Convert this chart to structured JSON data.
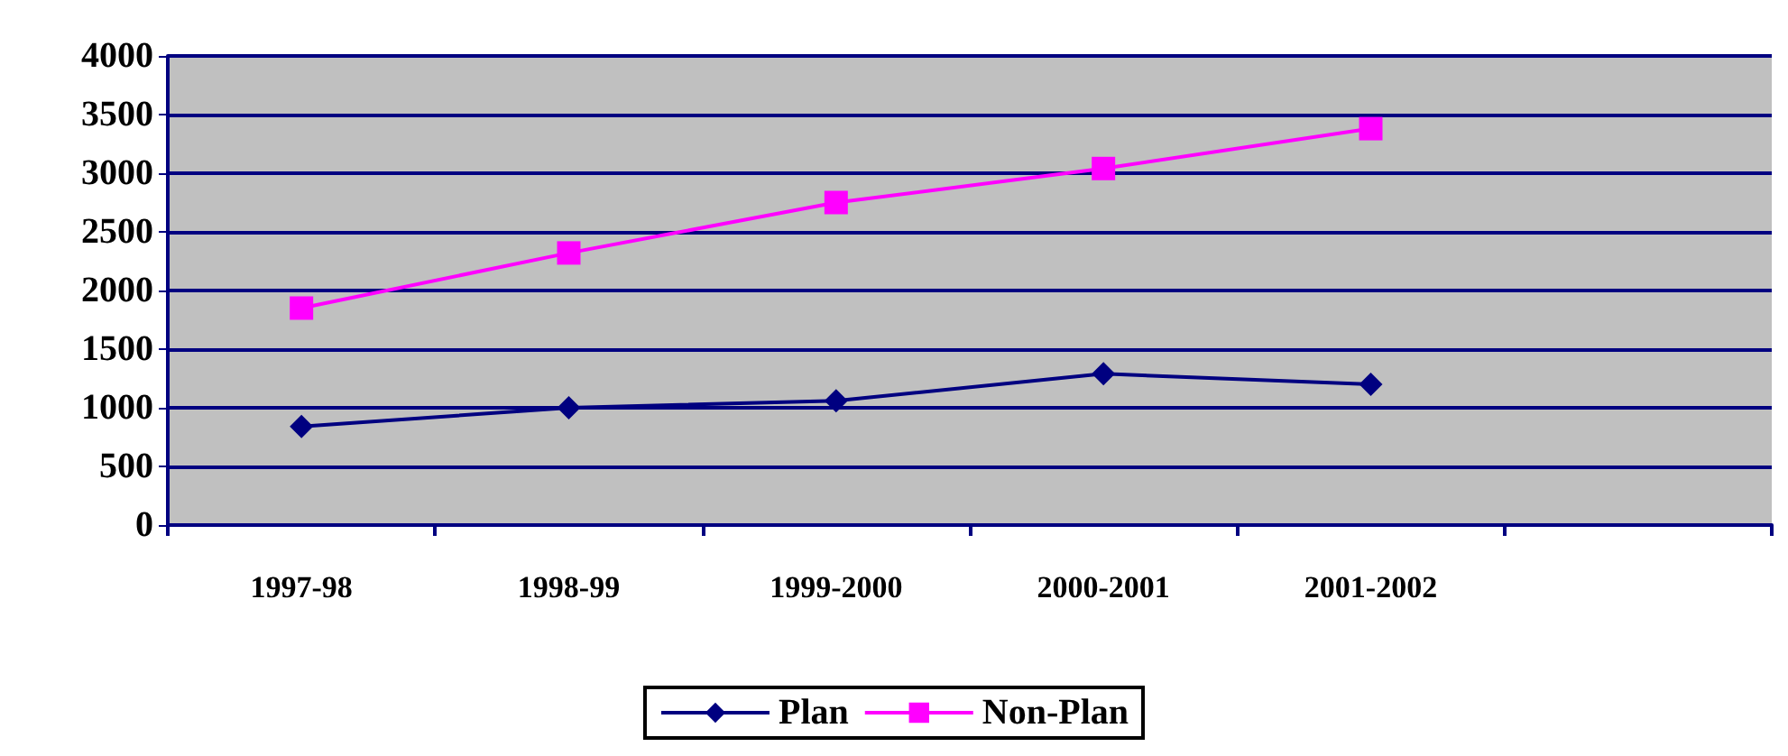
{
  "chart_data": {
    "type": "line",
    "categories": [
      "1997-98",
      "1998-99",
      "1999-2000",
      "2000-2001",
      "2001-2002",
      null
    ],
    "series": [
      {
        "name": "Plan",
        "color": "#000080",
        "marker": "diamond",
        "values": [
          840,
          1000,
          1060,
          1290,
          1200,
          null
        ]
      },
      {
        "name": "Non-Plan",
        "color": "#ff00ff",
        "marker": "square",
        "values": [
          1850,
          2320,
          2750,
          3040,
          3380,
          null
        ]
      }
    ],
    "ylim": [
      0,
      4000
    ],
    "yticks": [
      0,
      500,
      1000,
      1500,
      2000,
      2500,
      3000,
      3500,
      4000
    ],
    "grid": "y",
    "legend": "bottom"
  }
}
